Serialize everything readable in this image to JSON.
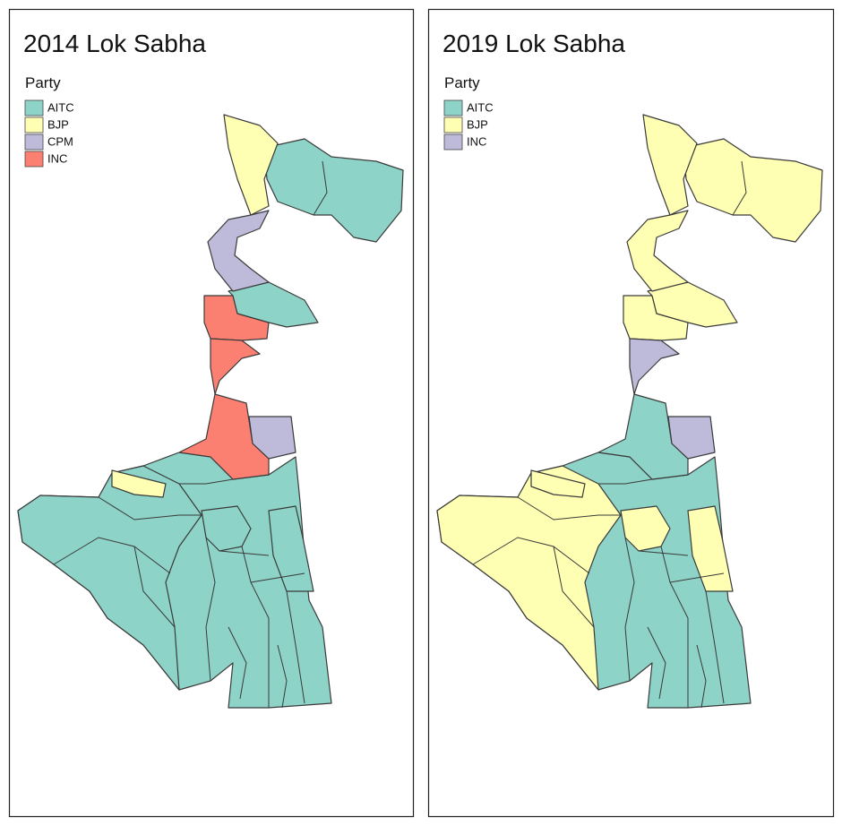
{
  "panels": [
    {
      "title": "2014 Lok Sabha",
      "legend": {
        "title": "Party",
        "items": [
          {
            "label": "AITC",
            "color": "#8dd3c7"
          },
          {
            "label": "BJP",
            "color": "#ffffb3"
          },
          {
            "label": "CPM",
            "color": "#bebada"
          },
          {
            "label": "INC",
            "color": "#fb8072"
          }
        ]
      }
    },
    {
      "title": "2019 Lok Sabha",
      "legend": {
        "title": "Party",
        "items": [
          {
            "label": "AITC",
            "color": "#8dd3c7"
          },
          {
            "label": "BJP",
            "color": "#ffffb3"
          },
          {
            "label": "INC",
            "color": "#bebada"
          }
        ]
      }
    }
  ]
}
